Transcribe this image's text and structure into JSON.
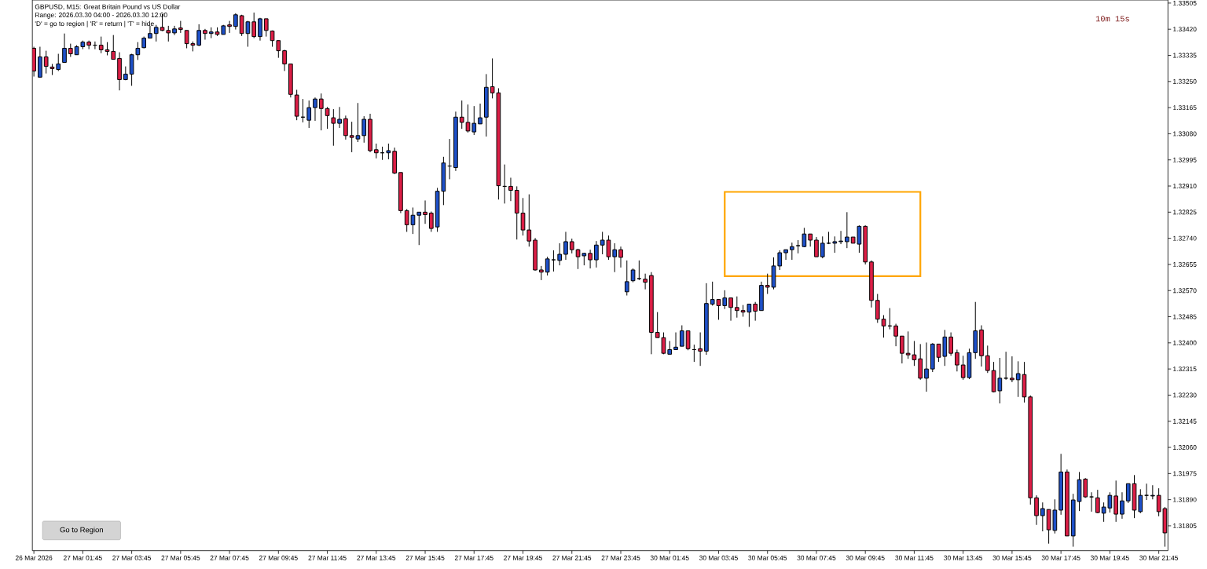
{
  "chart_data": {
    "type": "candlestick",
    "title": "GBPUSD, M15:  Great Britain Pound vs US Dollar",
    "annotations": [
      "Range: 2026.03.30 04:00 - 2026.03.30 12:00",
      "'D' = go to region | 'R' = return | 'T' = hide",
      "10m 15s",
      "Go to Region"
    ],
    "categories": [
      "26 Mar 2026",
      null,
      null,
      null,
      null,
      null,
      null,
      null,
      "27 Mar 01:45",
      null,
      null,
      null,
      null,
      null,
      null,
      null,
      "27 Mar 03:45",
      null,
      null,
      null,
      null,
      null,
      null,
      null,
      "27 Mar 05:45",
      null,
      null,
      null,
      null,
      null,
      null,
      null,
      "27 Mar 07:45",
      null,
      null,
      null,
      null,
      null,
      null,
      null,
      "27 Mar 09:45",
      null,
      null,
      null,
      null,
      null,
      null,
      null,
      "27 Mar 11:45",
      null,
      null,
      null,
      null,
      null,
      null,
      null,
      "27 Mar 13:45",
      null,
      null,
      null,
      null,
      null,
      null,
      null,
      "27 Mar 15:45",
      null,
      null,
      null,
      null,
      null,
      null,
      null,
      "27 Mar 17:45",
      null,
      null,
      null,
      null,
      null,
      null,
      null,
      "27 Mar 19:45",
      null,
      null,
      null,
      null,
      null,
      null,
      null,
      "27 Mar 21:45",
      null,
      null,
      null,
      null,
      null,
      null,
      null,
      "27 Mar 23:45",
      null,
      null,
      null,
      null,
      null,
      null,
      null,
      "30 Mar 01:45",
      null,
      null,
      null,
      null,
      null,
      null,
      null,
      "30 Mar 03:45",
      null,
      null,
      null,
      null,
      null,
      null,
      null,
      "30 Mar 05:45",
      null,
      null,
      null,
      null,
      null,
      null,
      null,
      "30 Mar 07:45",
      null,
      null,
      null,
      null,
      null,
      null,
      null,
      "30 Mar 09:45",
      null,
      null,
      null,
      null,
      null,
      null,
      null,
      "30 Mar 11:45",
      null,
      null,
      null,
      null,
      null,
      null,
      null,
      "30 Mar 13:45",
      null,
      null,
      null,
      null,
      null,
      null,
      null,
      "30 Mar 15:45",
      null,
      null,
      null,
      null,
      null,
      null,
      null,
      "30 Mar 17:45",
      null,
      null,
      null,
      null,
      null,
      null,
      null,
      "30 Mar 19:45",
      null,
      null,
      null,
      null,
      null,
      null,
      null,
      "30 Mar 21:45",
      null
    ],
    "ohlc": [
      [
        1.33358,
        1.33363,
        1.33266,
        1.33284
      ],
      [
        1.33264,
        1.33363,
        1.33264,
        1.3333
      ],
      [
        1.3333,
        1.3335,
        1.33276,
        1.33299
      ],
      [
        1.33297,
        1.33307,
        1.33271,
        1.33292
      ],
      [
        1.33289,
        1.3334,
        1.33284,
        1.33307
      ],
      [
        1.33312,
        1.33406,
        1.33312,
        1.33358
      ],
      [
        1.33358,
        1.33373,
        1.3333,
        1.3334
      ],
      [
        1.33337,
        1.33368,
        1.33337,
        1.33363
      ],
      [
        1.33363,
        1.33383,
        1.33355,
        1.33378
      ],
      [
        1.33378,
        1.33383,
        1.33355,
        1.33368
      ],
      [
        1.33368,
        1.3338,
        1.33355,
        1.33368
      ],
      [
        1.33368,
        1.33396,
        1.33342,
        1.33353
      ],
      [
        1.33353,
        1.33378,
        1.33335,
        1.33348
      ],
      [
        1.33348,
        1.33401,
        1.33322,
        1.33322
      ],
      [
        1.33325,
        1.33345,
        1.33221,
        1.33256
      ],
      [
        1.33256,
        1.33299,
        1.33254,
        1.33274
      ],
      [
        1.33274,
        1.3334,
        1.33236,
        1.33337
      ],
      [
        1.33337,
        1.33378,
        1.3332,
        1.33358
      ],
      [
        1.3336,
        1.33396,
        1.33358,
        1.33391
      ],
      [
        1.33391,
        1.33431,
        1.33391,
        1.33406
      ],
      [
        1.33406,
        1.33434,
        1.3338,
        1.33426
      ],
      [
        1.33426,
        1.33469,
        1.33414,
        1.33416
      ],
      [
        1.33416,
        1.33431,
        1.3338,
        1.33408
      ],
      [
        1.33408,
        1.33431,
        1.33401,
        1.33421
      ],
      [
        1.33424,
        1.33447,
        1.33408,
        1.33419
      ],
      [
        1.33416,
        1.33416,
        1.33358,
        1.33373
      ],
      [
        1.33373,
        1.3338,
        1.33348,
        1.33368
      ],
      [
        1.33368,
        1.33436,
        1.33365,
        1.33416
      ],
      [
        1.33416,
        1.33421,
        1.33386,
        1.33406
      ],
      [
        1.33406,
        1.33426,
        1.33391,
        1.33411
      ],
      [
        1.33411,
        1.33426,
        1.33398,
        1.33403
      ],
      [
        1.33403,
        1.33434,
        1.33403,
        1.33431
      ],
      [
        1.33434,
        1.33447,
        1.33408,
        1.33429
      ],
      [
        1.33429,
        1.33472,
        1.33419,
        1.33467
      ],
      [
        1.33464,
        1.33467,
        1.33398,
        1.33406
      ],
      [
        1.33406,
        1.33447,
        1.33363,
        1.33444
      ],
      [
        1.33444,
        1.33474,
        1.33391,
        1.33396
      ],
      [
        1.33396,
        1.33457,
        1.33383,
        1.33454
      ],
      [
        1.33454,
        1.33454,
        1.33396,
        1.33416
      ],
      [
        1.33414,
        1.33416,
        1.33363,
        1.33383
      ],
      [
        1.33383,
        1.33383,
        1.33327,
        1.3335
      ],
      [
        1.3335,
        1.33353,
        1.33284,
        1.33307
      ],
      [
        1.33307,
        1.33307,
        1.33198,
        1.33208
      ],
      [
        1.33206,
        1.33223,
        1.33124,
        1.33137
      ],
      [
        1.33134,
        1.33193,
        1.33117,
        1.33134
      ],
      [
        1.33124,
        1.33188,
        1.33099,
        1.33165
      ],
      [
        1.33165,
        1.33198,
        1.33122,
        1.33193
      ],
      [
        1.33193,
        1.33211,
        1.33091,
        1.33162
      ],
      [
        1.33162,
        1.33167,
        1.33096,
        1.33139
      ],
      [
        1.33132,
        1.3316,
        1.33041,
        1.33114
      ],
      [
        1.33114,
        1.33167,
        1.33099,
        1.33127
      ],
      [
        1.33129,
        1.33139,
        1.33061,
        1.33074
      ],
      [
        1.33074,
        1.33119,
        1.3302,
        1.33068
      ],
      [
        1.33063,
        1.3318,
        1.33053,
        1.33074
      ],
      [
        1.33074,
        1.33137,
        1.33051,
        1.33127
      ],
      [
        1.33127,
        1.33145,
        1.3302,
        1.33025
      ],
      [
        1.33028,
        1.33048,
        1.33,
        1.33018
      ],
      [
        1.33018,
        1.33038,
        1.32995,
        1.33018
      ],
      [
        1.33018,
        1.33048,
        1.32997,
        1.33025
      ],
      [
        1.33023,
        1.33035,
        1.32949,
        1.32952
      ],
      [
        1.32954,
        1.32954,
        1.32822,
        1.3283
      ],
      [
        1.3283,
        1.32835,
        1.32761,
        1.32784
      ],
      [
        1.32784,
        1.3284,
        1.32754,
        1.32815
      ],
      [
        1.32815,
        1.32825,
        1.32718,
        1.32825
      ],
      [
        1.32825,
        1.32863,
        1.32787,
        1.32817
      ],
      [
        1.32822,
        1.32827,
        1.32761,
        1.32772
      ],
      [
        1.32777,
        1.32904,
        1.32761,
        1.32893
      ],
      [
        1.32893,
        1.33005,
        1.32848,
        1.32985
      ],
      [
        1.32975,
        1.33063,
        1.32932,
        1.32975
      ],
      [
        1.3297,
        1.33152,
        1.32959,
        1.33134
      ],
      [
        1.33134,
        1.33188,
        1.33096,
        1.33117
      ],
      [
        1.33117,
        1.33175,
        1.33084,
        1.33089
      ],
      [
        1.33086,
        1.3317,
        1.33076,
        1.33114
      ],
      [
        1.33112,
        1.33178,
        1.33112,
        1.33132
      ],
      [
        1.33134,
        1.33274,
        1.33071,
        1.33231
      ],
      [
        1.33233,
        1.33325,
        1.33195,
        1.33213
      ],
      [
        1.33213,
        1.33228,
        1.32866,
        1.32911
      ],
      [
        1.32909,
        1.3298,
        1.32853,
        1.32909
      ],
      [
        1.32909,
        1.32937,
        1.32861,
        1.32896
      ],
      [
        1.32896,
        1.32909,
        1.32736,
        1.32822
      ],
      [
        1.32822,
        1.32871,
        1.32749,
        1.32767
      ],
      [
        1.32767,
        1.32883,
        1.32713,
        1.32731
      ],
      [
        1.32734,
        1.32741,
        1.32635,
        1.32637
      ],
      [
        1.32637,
        1.3265,
        1.32604,
        1.3263
      ],
      [
        1.3263,
        1.3268,
        1.32619,
        1.32673
      ],
      [
        1.3267,
        1.32701,
        1.32632,
        1.3267
      ],
      [
        1.32668,
        1.32724,
        1.32652,
        1.32688
      ],
      [
        1.32688,
        1.32761,
        1.3267,
        1.32729
      ],
      [
        1.32729,
        1.32739,
        1.32691,
        1.32703
      ],
      [
        1.32703,
        1.32706,
        1.3264,
        1.3268
      ],
      [
        1.32683,
        1.32693,
        1.32652,
        1.32691
      ],
      [
        1.32691,
        1.32703,
        1.32642,
        1.3267
      ],
      [
        1.3267,
        1.32731,
        1.32645,
        1.32718
      ],
      [
        1.32718,
        1.32761,
        1.32688,
        1.32734
      ],
      [
        1.32734,
        1.32749,
        1.3267,
        1.3268
      ],
      [
        1.3268,
        1.32724,
        1.3263,
        1.32703
      ],
      [
        1.32703,
        1.32713,
        1.32645,
        1.32678
      ],
      [
        1.32566,
        1.32668,
        1.32554,
        1.32599
      ],
      [
        1.32602,
        1.32642,
        1.32597,
        1.32637
      ],
      [
        1.32609,
        1.32668,
        1.32604,
        1.32609
      ],
      [
        1.32607,
        1.32625,
        1.32574,
        1.32597
      ],
      [
        1.32619,
        1.3263,
        1.32363,
        1.32434
      ],
      [
        1.32434,
        1.325,
        1.32417,
        1.32417
      ],
      [
        1.32417,
        1.32434,
        1.32363,
        1.32366
      ],
      [
        1.32363,
        1.32406,
        1.32363,
        1.32378
      ],
      [
        1.32378,
        1.32434,
        1.32378,
        1.32386
      ],
      [
        1.32389,
        1.32457,
        1.32389,
        1.32439
      ],
      [
        1.32439,
        1.32439,
        1.32376,
        1.32381
      ],
      [
        1.32378,
        1.32394,
        1.32338,
        1.32378
      ],
      [
        1.32381,
        1.32434,
        1.32325,
        1.32373
      ],
      [
        1.32373,
        1.32594,
        1.32361,
        1.32528
      ],
      [
        1.32526,
        1.32599,
        1.32521,
        1.32541
      ],
      [
        1.32541,
        1.32541,
        1.32475,
        1.32521
      ],
      [
        1.32521,
        1.32571,
        1.3251,
        1.32546
      ],
      [
        1.32546,
        1.32546,
        1.32472,
        1.32515
      ],
      [
        1.32515,
        1.32551,
        1.32482,
        1.32505
      ],
      [
        1.32505,
        1.32523,
        1.32485,
        1.325
      ],
      [
        1.325,
        1.32526,
        1.32452,
        1.32526
      ],
      [
        1.32526,
        1.32533,
        1.32472,
        1.32503
      ],
      [
        1.32505,
        1.32599,
        1.32505,
        1.32587
      ],
      [
        1.32587,
        1.32625,
        1.32559,
        1.32581
      ],
      [
        1.32581,
        1.32678,
        1.32574,
        1.3265
      ],
      [
        1.3265,
        1.32701,
        1.32637,
        1.32693
      ],
      [
        1.32693,
        1.32703,
        1.3267,
        1.32703
      ],
      [
        1.32703,
        1.32726,
        1.3267,
        1.32713
      ],
      [
        1.32716,
        1.32734,
        1.32691,
        1.32716
      ],
      [
        1.32713,
        1.32774,
        1.32711,
        1.32754
      ],
      [
        1.32754,
        1.32754,
        1.32713,
        1.32734
      ],
      [
        1.32734,
        1.32744,
        1.3268,
        1.3268
      ],
      [
        1.3268,
        1.32746,
        1.32675,
        1.32724
      ],
      [
        1.32724,
        1.32761,
        1.32721,
        1.32724
      ],
      [
        1.32724,
        1.32746,
        1.32693,
        1.32729
      ],
      [
        1.32729,
        1.32764,
        1.32721,
        1.32731
      ],
      [
        1.32729,
        1.32825,
        1.32708,
        1.32744
      ],
      [
        1.32744,
        1.32744,
        1.32724,
        1.32724
      ],
      [
        1.32721,
        1.32782,
        1.32693,
        1.32779
      ],
      [
        1.32779,
        1.32782,
        1.32655,
        1.32663
      ],
      [
        1.32663,
        1.32668,
        1.32515,
        1.32538
      ],
      [
        1.32538,
        1.32559,
        1.32465,
        1.32477
      ],
      [
        1.32477,
        1.3249,
        1.32417,
        1.32455
      ],
      [
        1.32455,
        1.32513,
        1.32444,
        1.32455
      ],
      [
        1.32455,
        1.32462,
        1.32389,
        1.32422
      ],
      [
        1.32422,
        1.32422,
        1.32333,
        1.32366
      ],
      [
        1.32366,
        1.32437,
        1.32348,
        1.32361
      ],
      [
        1.32361,
        1.32406,
        1.32325,
        1.32345
      ],
      [
        1.32348,
        1.32396,
        1.3228,
        1.32285
      ],
      [
        1.32285,
        1.32401,
        1.32241,
        1.32315
      ],
      [
        1.32315,
        1.32399,
        1.32305,
        1.32396
      ],
      [
        1.32396,
        1.32396,
        1.32338,
        1.32353
      ],
      [
        1.32356,
        1.32442,
        1.32325,
        1.32419
      ],
      [
        1.32419,
        1.32434,
        1.32358,
        1.32366
      ],
      [
        1.32368,
        1.32378,
        1.32307,
        1.32328
      ],
      [
        1.32328,
        1.32358,
        1.3228,
        1.32287
      ],
      [
        1.32287,
        1.32381,
        1.32282,
        1.32368
      ],
      [
        1.32368,
        1.32533,
        1.32348,
        1.32439
      ],
      [
        1.32442,
        1.32457,
        1.32323,
        1.32358
      ],
      [
        1.32358,
        1.32391,
        1.32302,
        1.3231
      ],
      [
        1.3231,
        1.32338,
        1.32239,
        1.32241
      ],
      [
        1.32244,
        1.32351,
        1.32203,
        1.32285
      ],
      [
        1.32285,
        1.32371,
        1.3228,
        1.32285
      ],
      [
        1.32285,
        1.32356,
        1.32272,
        1.3228
      ],
      [
        1.3228,
        1.3234,
        1.32224,
        1.323
      ],
      [
        1.32297,
        1.32338,
        1.32206,
        1.32224
      ],
      [
        1.32224,
        1.32229,
        1.31874,
        1.31896
      ],
      [
        1.31896,
        1.31904,
        1.31808,
        1.31838
      ],
      [
        1.31838,
        1.31881,
        1.31787,
        1.31861
      ],
      [
        1.31858,
        1.31858,
        1.31747,
        1.31792
      ],
      [
        1.3179,
        1.31891,
        1.3178,
        1.31856
      ],
      [
        1.31856,
        1.32039,
        1.31841,
        1.3198
      ],
      [
        1.3198,
        1.31988,
        1.31772,
        1.31772
      ],
      [
        1.31772,
        1.31909,
        1.31737,
        1.31889
      ],
      [
        1.31884,
        1.3198,
        1.31853,
        1.31955
      ],
      [
        1.31957,
        1.3196,
        1.31896,
        1.31899
      ],
      [
        1.31899,
        1.31914,
        1.31851,
        1.31899
      ],
      [
        1.31896,
        1.31922,
        1.31846,
        1.31848
      ],
      [
        1.31846,
        1.31881,
        1.31818,
        1.31866
      ],
      [
        1.31863,
        1.31914,
        1.31848,
        1.31904
      ],
      [
        1.31902,
        1.31952,
        1.31818,
        1.31843
      ],
      [
        1.31843,
        1.31914,
        1.31828,
        1.31886
      ],
      [
        1.31886,
        1.31942,
        1.31879,
        1.31942
      ],
      [
        1.31942,
        1.3197,
        1.3183,
        1.31856
      ],
      [
        1.31851,
        1.31924,
        1.31846,
        1.31904
      ],
      [
        1.31904,
        1.31942,
        1.31889,
        1.31904
      ],
      [
        1.31902,
        1.31937,
        1.31891,
        1.31904
      ],
      [
        1.31904,
        1.31927,
        1.31836,
        1.31851
      ],
      [
        1.31861,
        1.31866,
        1.31737,
        1.31782
      ]
    ],
    "colors": [
      "#dc1e46",
      "#1e50c8",
      "#dc1e46",
      "#dc1e46",
      "#1e50c8",
      "#1e50c8",
      "#dc1e46",
      "#1e50c8",
      "#1e50c8",
      "#dc1e46",
      "#000000",
      "#dc1e46",
      "#dc1e46",
      "#dc1e46",
      "#dc1e46",
      "#1e50c8",
      "#1e50c8",
      "#1e50c8",
      "#1e50c8",
      "#1e50c8",
      "#1e50c8",
      "#dc1e46",
      "#dc1e46",
      "#1e50c8",
      "#dc1e46",
      "#dc1e46",
      "#dc1e46",
      "#1e50c8",
      "#dc1e46",
      "#1e50c8",
      "#dc1e46",
      "#1e50c8",
      "#dc1e46",
      "#1e50c8",
      "#dc1e46",
      "#1e50c8",
      "#dc1e46",
      "#1e50c8",
      "#dc1e46",
      "#dc1e46",
      "#dc1e46",
      "#dc1e46",
      "#dc1e46",
      "#dc1e46",
      "#000000",
      "#1e50c8",
      "#1e50c8",
      "#dc1e46",
      "#dc1e46",
      "#dc1e46",
      "#1e50c8",
      "#dc1e46",
      "#dc1e46",
      "#1e50c8",
      "#1e50c8",
      "#dc1e46",
      "#dc1e46",
      "#000000",
      "#1e50c8",
      "#dc1e46",
      "#dc1e46",
      "#dc1e46",
      "#1e50c8",
      "#1e50c8",
      "#dc1e46",
      "#dc1e46",
      "#1e50c8",
      "#1e50c8",
      "#000000",
      "#1e50c8",
      "#dc1e46",
      "#dc1e46",
      "#1e50c8",
      "#1e50c8",
      "#1e50c8",
      "#dc1e46",
      "#dc1e46",
      "#000000",
      "#dc1e46",
      "#dc1e46",
      "#dc1e46",
      "#dc1e46",
      "#dc1e46",
      "#dc1e46",
      "#1e50c8",
      "#000000",
      "#1e50c8",
      "#1e50c8",
      "#dc1e46",
      "#dc1e46",
      "#1e50c8",
      "#dc1e46",
      "#1e50c8",
      "#1e50c8",
      "#dc1e46",
      "#1e50c8",
      "#dc1e46",
      "#1e50c8",
      "#1e50c8",
      "#000000",
      "#dc1e46",
      "#dc1e46",
      "#dc1e46",
      "#dc1e46",
      "#1e50c8",
      "#1e50c8",
      "#1e50c8",
      "#dc1e46",
      "#000000",
      "#dc1e46",
      "#1e50c8",
      "#1e50c8",
      "#dc1e46",
      "#1e50c8",
      "#dc1e46",
      "#dc1e46",
      "#dc1e46",
      "#1e50c8",
      "#dc1e46",
      "#1e50c8",
      "#dc1e46",
      "#1e50c8",
      "#1e50c8",
      "#1e50c8",
      "#1e50c8",
      "#000000",
      "#1e50c8",
      "#dc1e46",
      "#dc1e46",
      "#1e50c8",
      "#000000",
      "#1e50c8",
      "#1e50c8",
      "#1e50c8",
      "#dc1e46",
      "#1e50c8",
      "#dc1e46",
      "#dc1e46",
      "#dc1e46",
      "#dc1e46",
      "#000000",
      "#dc1e46",
      "#dc1e46",
      "#dc1e46",
      "#dc1e46",
      "#dc1e46",
      "#1e50c8",
      "#1e50c8",
      "#dc1e46",
      "#1e50c8",
      "#dc1e46",
      "#dc1e46",
      "#dc1e46",
      "#1e50c8",
      "#1e50c8",
      "#dc1e46",
      "#dc1e46",
      "#dc1e46",
      "#1e50c8",
      "#000000",
      "#dc1e46",
      "#1e50c8",
      "#dc1e46",
      "#dc1e46",
      "#dc1e46",
      "#1e50c8",
      "#dc1e46",
      "#1e50c8",
      "#1e50c8",
      "#dc1e46",
      "#1e50c8",
      "#1e50c8",
      "#dc1e46",
      "#000000",
      "#dc1e46",
      "#1e50c8",
      "#1e50c8",
      "#dc1e46",
      "#1e50c8",
      "#1e50c8",
      "#dc1e46",
      "#1e50c8",
      "#000000",
      "#1e50c8",
      "#dc1e46",
      "#dc1e46"
    ],
    "ylim": [
      1.31724,
      1.33515
    ],
    "yticks": [
      1.31805,
      {
        "value": 1.3189,
        "label": "1.31890"
      },
      1.31975,
      {
        "value": 1.3206,
        "label": "1.32060"
      },
      1.32145,
      {
        "value": 1.3223,
        "label": "1.32230"
      },
      1.32315,
      {
        "value": 1.324,
        "label": "1.32400"
      },
      1.32485,
      {
        "value": 1.3257,
        "label": "1.32570"
      },
      1.32655,
      {
        "value": 1.3274,
        "label": "1.32740"
      },
      1.32825,
      {
        "value": 1.3291,
        "label": "1.32910"
      },
      1.32995,
      {
        "value": 1.3308,
        "label": "1.33080"
      },
      1.33165,
      {
        "value": 1.3325,
        "label": "1.33250"
      },
      1.33335,
      {
        "value": 1.3342,
        "label": "1.33420"
      },
      1.33505
    ]
  }
}
